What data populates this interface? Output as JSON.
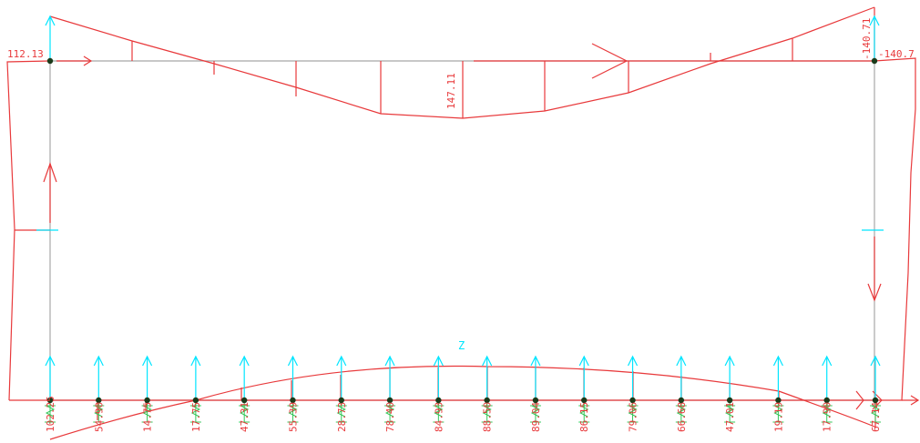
{
  "frame": {
    "top_left_label": "112.13",
    "top_right_label": "-140.7",
    "top_right_label_vertical": "-140.71",
    "top_mid_label": "147.11",
    "z_label": "Z",
    "bottom_labels": [
      "102.25",
      "54.90",
      "14.75",
      "17.75",
      "47.31",
      "55.39",
      "28.73",
      "78.40",
      "84.93",
      "88.50",
      "89.04",
      "86.15",
      "79.06",
      "66.68",
      "47.01",
      "19.19",
      "17.90",
      "67.14"
    ]
  },
  "colors": {
    "moment": "#e8393b",
    "frame": "#a8a8a8",
    "support": "#34c759",
    "load": "#00e5ff",
    "node": "#1a3a1a"
  }
}
